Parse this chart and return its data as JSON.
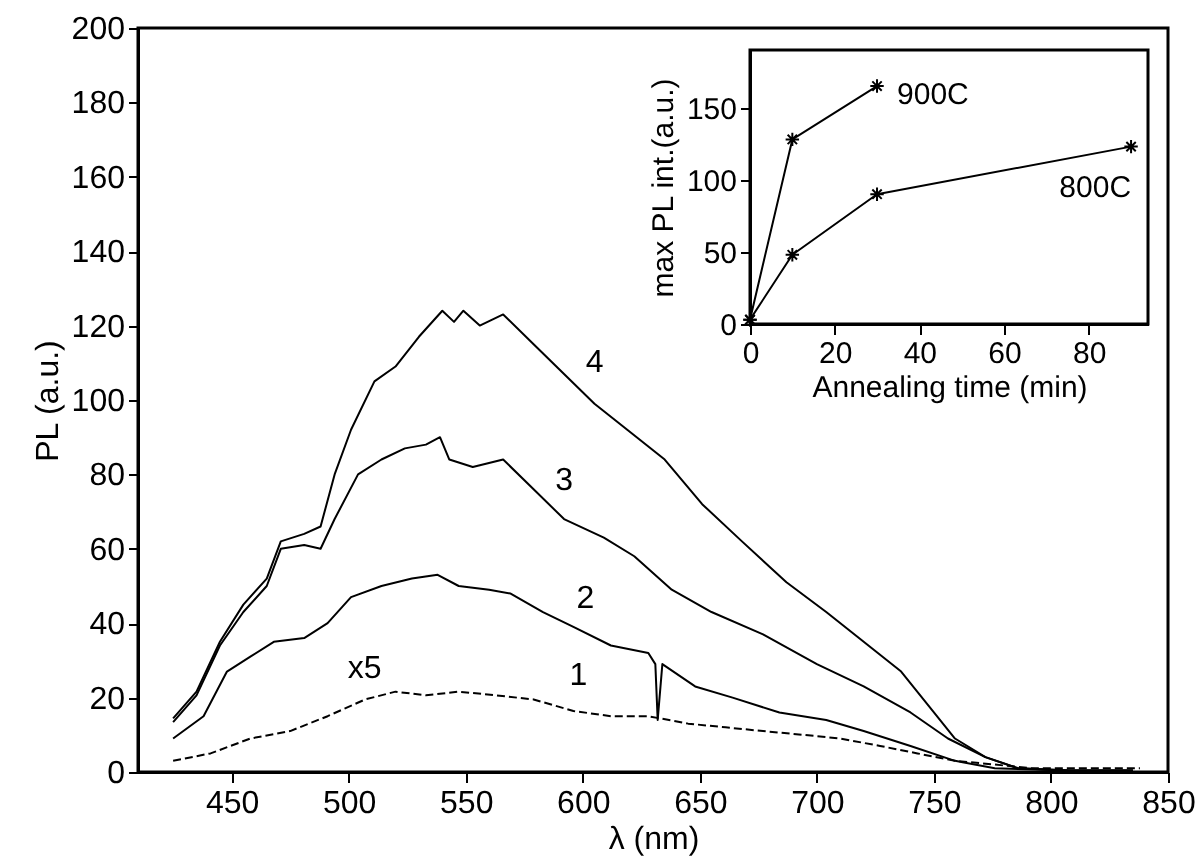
{
  "chart_data": [
    {
      "type": "line",
      "xlabel": "λ (nm)",
      "ylabel": "PL (a.u.)",
      "xlim": [
        410,
        850
      ],
      "xticks": [
        450,
        500,
        550,
        600,
        650,
        700,
        750,
        800,
        850
      ],
      "ylim": [
        0,
        200
      ],
      "yticks": [
        0,
        20,
        40,
        60,
        80,
        100,
        120,
        140,
        160,
        180,
        200
      ],
      "annotations": [
        "x5"
      ],
      "series": [
        {
          "name": "4",
          "color": "#000000",
          "x": [
            425,
            435,
            445,
            455,
            465,
            471,
            481,
            488,
            494,
            501,
            511,
            520,
            530,
            540,
            545,
            549,
            556,
            566,
            579,
            592,
            605,
            619,
            635,
            651,
            668,
            687,
            704,
            720,
            736,
            750,
            759,
            772,
            786,
            808,
            835
          ],
          "values": [
            14.4,
            21.6,
            35,
            45,
            52,
            62,
            64,
            66,
            80,
            92,
            105,
            109,
            117,
            124,
            121,
            124,
            120,
            123,
            115,
            107,
            99,
            92,
            84,
            72,
            62,
            51,
            43,
            35,
            27,
            16,
            9,
            4,
            1,
            0.4,
            0.4
          ]
        },
        {
          "name": "3",
          "color": "#000000",
          "x": [
            425,
            435,
            445,
            455,
            465,
            471,
            481,
            488,
            494,
            504,
            514,
            524,
            533,
            539,
            543,
            553,
            566,
            579,
            592,
            609,
            622,
            638,
            655,
            677,
            700,
            720,
            740,
            756,
            772,
            786,
            808,
            835
          ],
          "values": [
            13.4,
            20.6,
            34,
            43,
            50,
            60,
            61,
            60,
            68,
            80,
            84,
            87,
            88,
            90,
            84,
            82,
            84,
            76,
            68,
            63,
            58,
            49,
            43,
            37,
            29,
            23,
            16,
            9,
            4,
            1,
            0.4,
            0.4
          ]
        },
        {
          "name": "2",
          "color": "#000000",
          "x": [
            425,
            438,
            448,
            458,
            468,
            481,
            491,
            501,
            514,
            527,
            538,
            547,
            560,
            569,
            583,
            596,
            612,
            628,
            631,
            632,
            634,
            648,
            664,
            684,
            704,
            720,
            740,
            759,
            776,
            808,
            835
          ],
          "values": [
            9,
            15,
            27,
            31,
            35,
            36,
            40,
            47,
            50,
            52,
            53,
            50,
            49,
            48,
            43,
            39,
            34,
            32,
            29,
            14,
            29,
            23,
            20,
            16,
            14,
            11,
            7,
            3,
            1,
            0.4,
            0.4
          ]
        },
        {
          "name": "1",
          "color": "#000000",
          "line_style": "dashed",
          "x": [
            425,
            441,
            458,
            475,
            491,
            507,
            520,
            533,
            547,
            563,
            579,
            596,
            612,
            628,
            645,
            661,
            677,
            694,
            710,
            727,
            743,
            759,
            776,
            792,
            808,
            825,
            838
          ],
          "values": [
            3,
            5,
            9,
            11,
            15,
            19.5,
            21.6,
            20.6,
            21.6,
            20.6,
            19.5,
            16.4,
            15,
            15,
            13,
            12,
            11,
            10,
            9,
            7,
            5,
            3,
            2,
            1,
            1,
            1,
            1
          ]
        }
      ]
    },
    {
      "type": "line",
      "xlabel": "Annealing time (min)",
      "ylabel": "max PL int.(a.u.)",
      "marker": "cross",
      "xlim": [
        0,
        94
      ],
      "xticks": [
        0,
        20,
        40,
        60,
        80
      ],
      "ylim": [
        0,
        190
      ],
      "yticks": [
        0,
        50,
        100,
        150
      ],
      "series": [
        {
          "name": "900C",
          "color": "#000000",
          "x": [
            0,
            10,
            30
          ],
          "values": [
            3,
            128,
            165
          ]
        },
        {
          "name": "800C",
          "color": "#000000",
          "x": [
            0,
            10,
            30,
            90
          ],
          "values": [
            3,
            48,
            90,
            123
          ]
        }
      ]
    }
  ]
}
